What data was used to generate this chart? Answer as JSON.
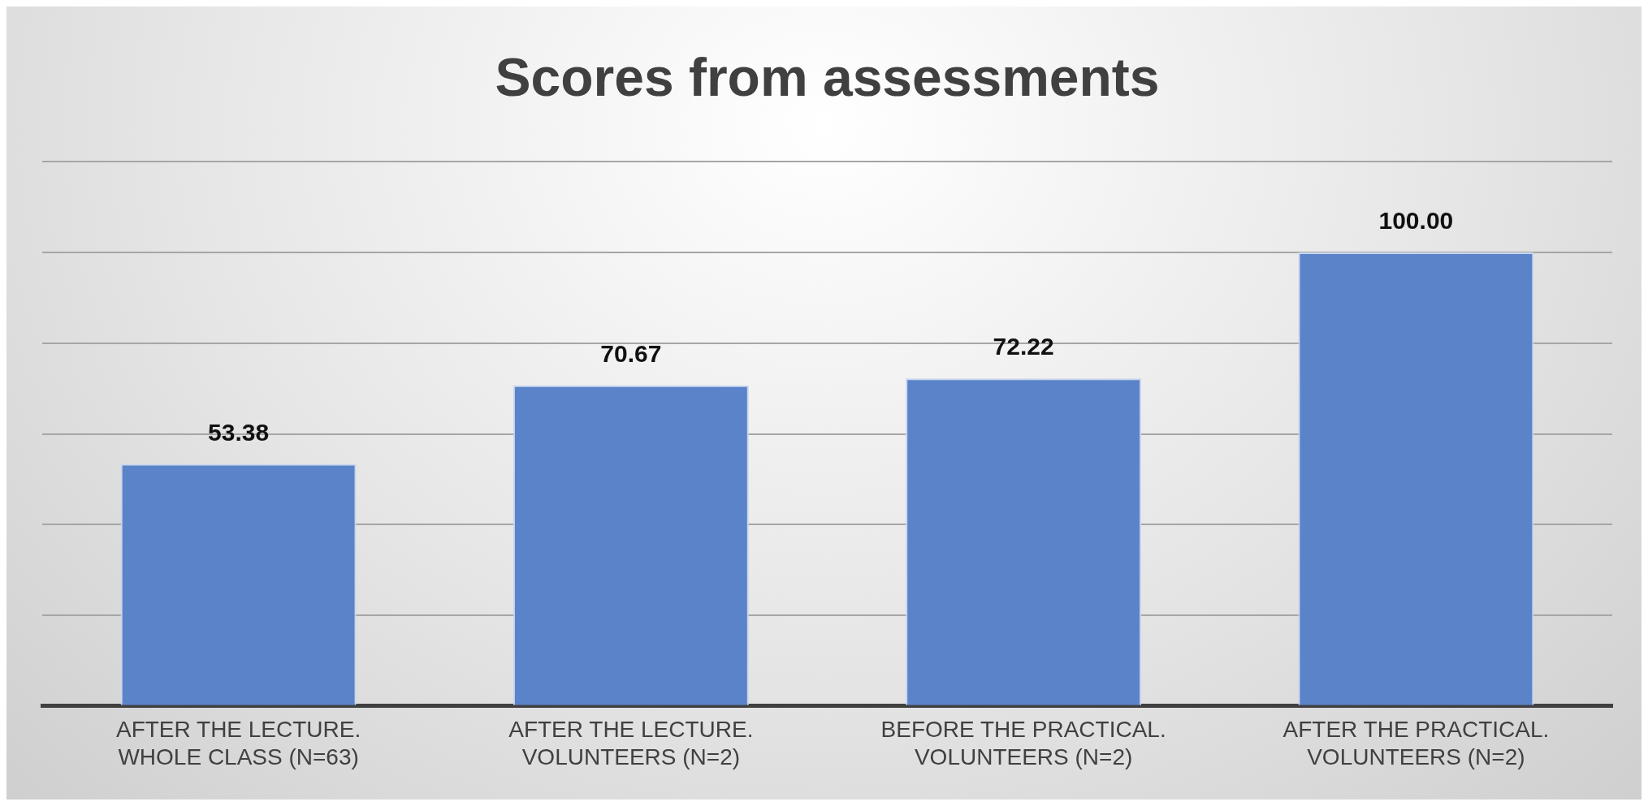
{
  "chart_data": {
    "type": "bar",
    "title": "Scores from assessments",
    "categories": [
      "AFTER THE LECTURE. WHOLE CLASS (N=63)",
      "AFTER THE LECTURE. VOLUNTEERS (N=2)",
      "BEFORE THE PRACTICAL. VOLUNTEERS (N=2)",
      "AFTER THE PRACTICAL. VOLUNTEERS (N=2)"
    ],
    "values": [
      53.38,
      70.67,
      72.22,
      100.0
    ],
    "value_labels": [
      "53.38",
      "70.67",
      "72.22",
      "100.00"
    ],
    "color": "#5b83c9",
    "ylim": [
      0,
      120
    ],
    "tick_labels": "x",
    "grid": "y",
    "legend": false
  }
}
